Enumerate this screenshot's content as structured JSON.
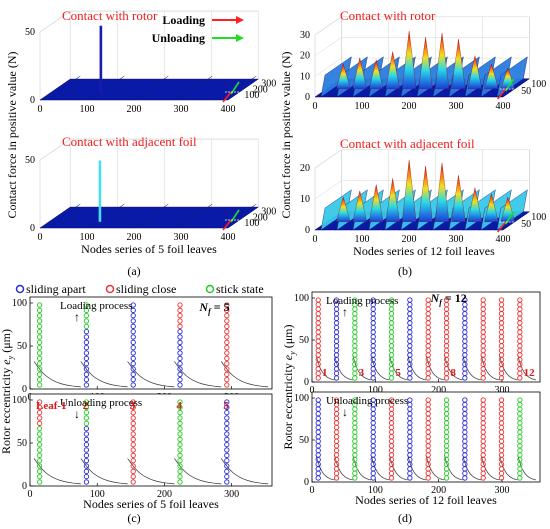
{
  "figure": {
    "panel_labels": [
      "(a)",
      "(b)",
      "(c)",
      "(d)"
    ],
    "colors": {
      "annotation_red": "#ee1c1c",
      "surface_blue": "#0a1aa8",
      "loading_arrow": "#ff2020",
      "unloading_arrow": "#22dd22",
      "sliding_apart": "#2a2ad8",
      "sliding_close": "#ee3030",
      "stick_state": "#22cc22"
    }
  },
  "chart_data": [
    {
      "id": "a-top",
      "type": "surface3d",
      "annotation": "Contact with rotor",
      "legend": [
        {
          "label": "Loading",
          "color": "#ff2020"
        },
        {
          "label": "Unloading",
          "color": "#22dd22"
        }
      ],
      "ylabel": "Contact force in positive value (N)",
      "z_ticks": [
        "0",
        "50"
      ],
      "x_ticks": [
        "0",
        "100",
        "200",
        "300",
        "400"
      ],
      "depth_ticks": [
        "100",
        "200",
        "300"
      ],
      "peaks": [
        {
          "node": 110,
          "force": 50
        }
      ]
    },
    {
      "id": "a-bottom",
      "type": "surface3d",
      "annotation": "Contact with adjacent foil",
      "xlabel": "Nodes series of 5 foil leaves",
      "z_ticks": [
        "0",
        "50"
      ],
      "x_ticks": [
        "0",
        "100",
        "200",
        "300",
        "400"
      ],
      "depth_ticks": [
        "100",
        "200",
        "300"
      ],
      "peaks": [
        {
          "node": 108,
          "force": 45
        }
      ]
    },
    {
      "id": "b-top",
      "type": "surface3d",
      "annotation": "Contact with rotor",
      "z_ticks": [
        "0",
        "10",
        "20",
        "30"
      ],
      "x_ticks": [
        "0",
        "100",
        "200",
        "300",
        "400"
      ],
      "depth_ticks": [
        "50",
        "100"
      ],
      "peaks_nodes": [
        35,
        70,
        105,
        140,
        175,
        210,
        245,
        280,
        315,
        350,
        385
      ],
      "peaks_force": [
        12,
        15,
        14,
        18,
        28,
        25,
        27,
        24,
        16,
        12,
        10
      ]
    },
    {
      "id": "b-bottom",
      "type": "surface3d",
      "annotation": "Contact with adjacent foil",
      "xlabel": "Nodes series of 12 foil leaves",
      "z_ticks": [
        "0",
        "10",
        "20"
      ],
      "x_ticks": [
        "0",
        "100",
        "200",
        "300",
        "400"
      ],
      "depth_ticks": [
        "50",
        "100"
      ],
      "peaks_nodes": [
        35,
        70,
        105,
        140,
        175,
        210,
        245,
        280,
        315,
        350,
        385
      ],
      "peaks_force": [
        8,
        10,
        12,
        14,
        20,
        18,
        19,
        15,
        11,
        9,
        8
      ]
    },
    {
      "id": "c",
      "type": "scatter",
      "legend": [
        {
          "label": "sliding apart",
          "color": "#2a2ad8"
        },
        {
          "label": "sliding close",
          "color": "#ee3030"
        },
        {
          "label": "stick state",
          "color": "#22cc22"
        }
      ],
      "ylabel": "Rotor eccentricity e_y (μm)",
      "ylabel_parts": [
        "Rotor eccentricity ",
        "e",
        "y",
        " (μm)"
      ],
      "xlabel": "Nodes series of 5 foil leaves",
      "xlim": [
        0,
        360
      ],
      "x_ticks": [
        "0",
        "100",
        "200",
        "300"
      ],
      "subplots": [
        {
          "title": "Loading process",
          "arrow": "↑",
          "nf": "N",
          "nf_sub": "f",
          "nf_value": " = 5",
          "y_ticks": [
            "0",
            "50",
            "100"
          ],
          "leaf_labels": [
            "Leaf-1",
            "2",
            "3",
            "4",
            "5"
          ]
        },
        {
          "title": "Unloading process",
          "arrow": "↓",
          "y_ticks": [
            "0",
            "50",
            "100"
          ]
        }
      ]
    },
    {
      "id": "d",
      "type": "scatter",
      "ylabel": "Rotor eccentricity e_y (μm)",
      "ylabel_parts": [
        "Rotor eccentricity ",
        "e",
        "y",
        " (μm)"
      ],
      "xlabel": "Nodes series of 12 foil leaves",
      "xlim": [
        0,
        360
      ],
      "x_ticks": [
        "0",
        "100",
        "200",
        "300"
      ],
      "subplots": [
        {
          "title": "Loading process",
          "arrow": "↑",
          "nf": "N",
          "nf_sub": "f",
          "nf_value": " = 12",
          "y_ticks": [
            "0",
            "50",
            "100"
          ],
          "leaf_labels": [
            "1",
            "3",
            "5",
            "8",
            "12"
          ]
        },
        {
          "title": "Unloading process",
          "arrow": "↓",
          "y_ticks": [
            "0",
            "50",
            "100"
          ]
        }
      ]
    }
  ]
}
